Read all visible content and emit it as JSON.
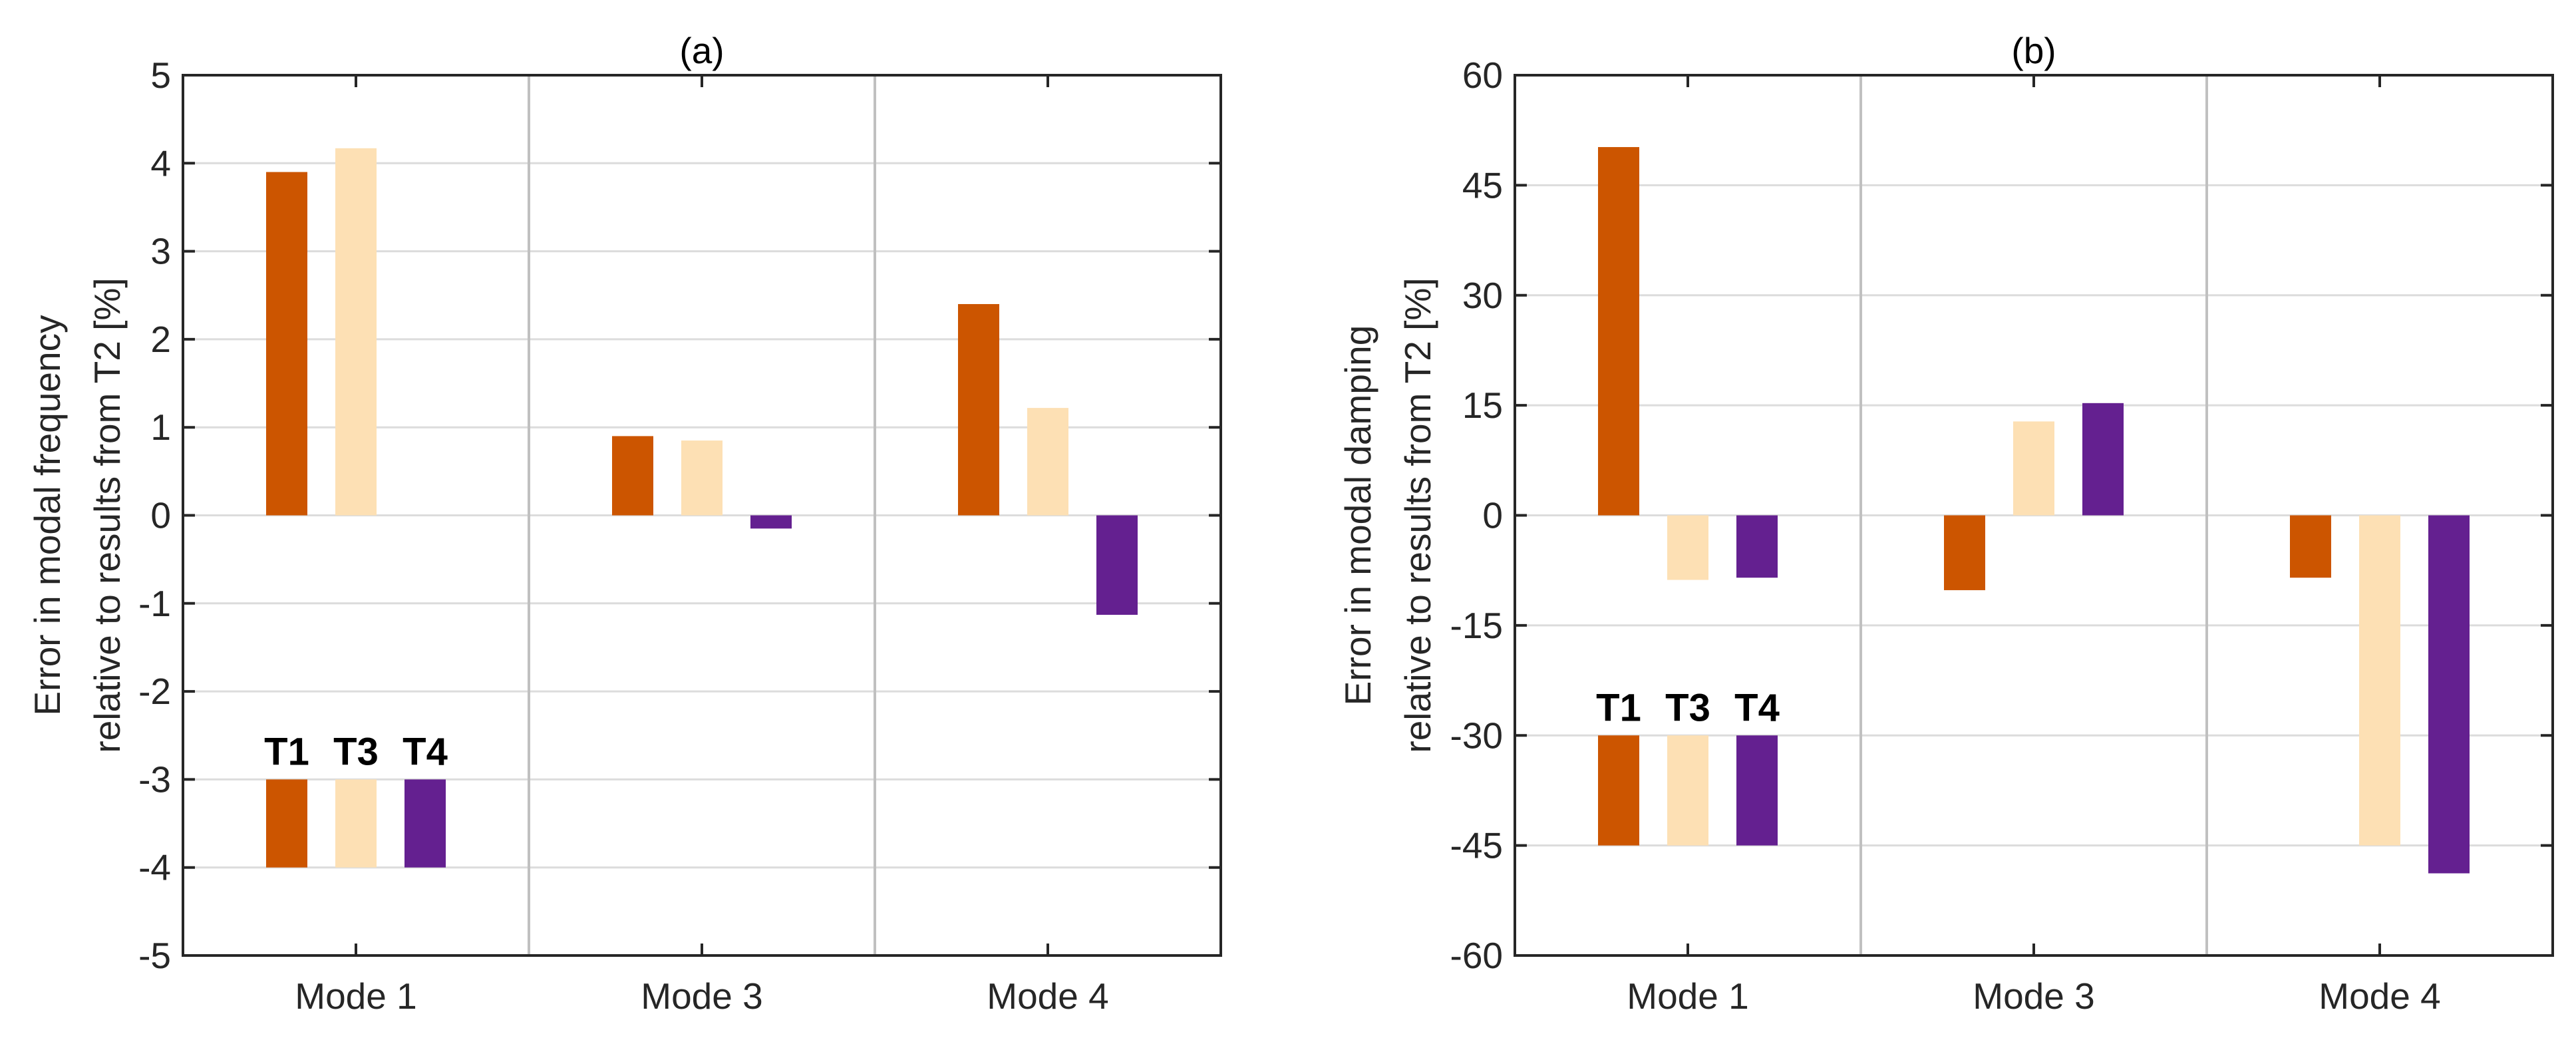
{
  "chart_data": [
    {
      "type": "bar",
      "title": "(a)",
      "ylabel_lines": [
        "Error in modal frequency",
        "relative to results from T2 [%]"
      ],
      "categories": [
        "Mode 1",
        "Mode 3",
        "Mode 4"
      ],
      "series": [
        {
          "name": "T1",
          "color": "#cc5500",
          "values": [
            3.9,
            0.9,
            2.4
          ]
        },
        {
          "name": "T3",
          "color": "#fde0b4",
          "values": [
            4.17,
            0.85,
            1.22
          ]
        },
        {
          "name": "T4",
          "color": "#642090",
          "values": [
            0,
            -0.15,
            -1.13
          ]
        }
      ],
      "ylim": [
        -5,
        5
      ],
      "yticks": [
        5,
        4,
        3,
        2,
        1,
        0,
        -1,
        -2,
        -3,
        -4,
        -5
      ],
      "ytick_labels": [
        "5",
        "4",
        "3",
        "2",
        "1",
        "0",
        "-1",
        "-2",
        "-3",
        "-4",
        "-5"
      ],
      "grid": true,
      "legend": {
        "placement": "lower-left",
        "y_from": -4,
        "y_to": -3
      }
    },
    {
      "type": "bar",
      "title": "(b)",
      "ylabel_lines": [
        "Error in modal damping",
        "relative to results from T2 [%]"
      ],
      "categories": [
        "Mode 1",
        "Mode 3",
        "Mode 4"
      ],
      "series": [
        {
          "name": "T1",
          "color": "#cc5500",
          "values": [
            50.2,
            -10.2,
            -8.5
          ]
        },
        {
          "name": "T3",
          "color": "#fde0b4",
          "values": [
            -8.8,
            12.8,
            -45
          ]
        },
        {
          "name": "T4",
          "color": "#642090",
          "values": [
            -8.5,
            15.3,
            -48.8
          ]
        }
      ],
      "ylim": [
        -60,
        60
      ],
      "yticks": [
        60,
        45,
        30,
        15,
        0,
        -15,
        -30,
        -45,
        -60
      ],
      "ytick_labels": [
        "60",
        "45",
        "30",
        "15",
        "0",
        "-15",
        "-30",
        "-45",
        "-60"
      ],
      "grid": true,
      "legend": {
        "placement": "lower-left",
        "y_from": -45,
        "y_to": -30
      }
    }
  ]
}
